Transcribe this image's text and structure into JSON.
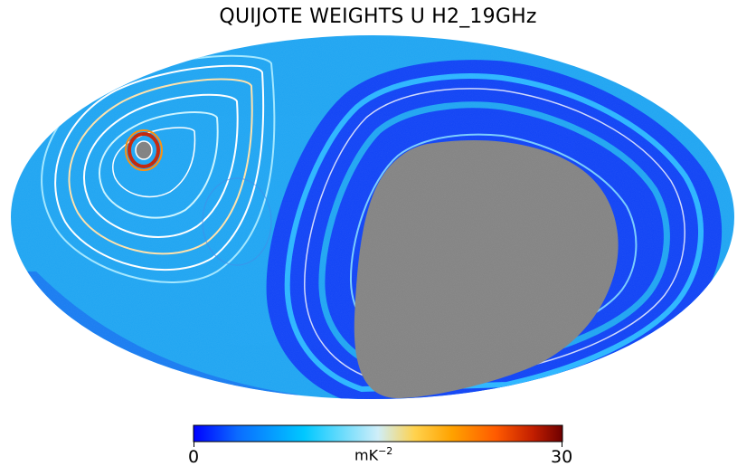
{
  "title": "QUIJOTE WEIGHTS U H2_19GHz",
  "projection": "mollweide",
  "colorbar": {
    "min_label": "0",
    "max_label": "30",
    "min": 0,
    "max": 30,
    "unit_base": "mK",
    "unit_exponent": "−2",
    "colormap": "planck",
    "colors": [
      "#0000ff",
      "#0b6cff",
      "#00c8ff",
      "#cfeef9",
      "#ffd24d",
      "#ffa200",
      "#ff5a00",
      "#c21e00",
      "#6e0000"
    ]
  },
  "masked_color": "#808080",
  "background_level_color": "#18a2f2"
}
